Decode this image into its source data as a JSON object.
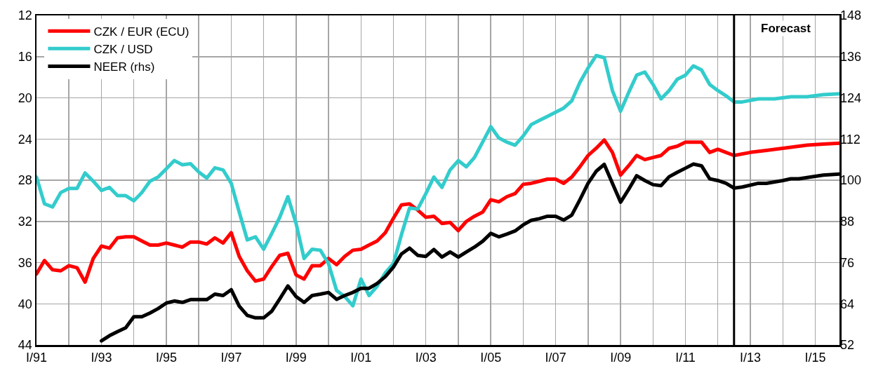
{
  "chart_data": {
    "type": "line",
    "xlim": [
      "1991-01",
      "2015-10"
    ],
    "xticks": [
      {
        "value": "1991-01",
        "label": "I/91"
      },
      {
        "value": "1992-01",
        "label": null
      },
      {
        "value": "1993-01",
        "label": "I/93"
      },
      {
        "value": "1994-01",
        "label": null
      },
      {
        "value": "1995-01",
        "label": "I/95"
      },
      {
        "value": "1996-01",
        "label": null
      },
      {
        "value": "1997-01",
        "label": "I/97"
      },
      {
        "value": "1998-01",
        "label": null
      },
      {
        "value": "1999-01",
        "label": "I/99"
      },
      {
        "value": "2000-01",
        "label": null
      },
      {
        "value": "2001-01",
        "label": "I/01"
      },
      {
        "value": "2002-01",
        "label": null
      },
      {
        "value": "2003-01",
        "label": "I/03"
      },
      {
        "value": "2004-01",
        "label": null
      },
      {
        "value": "2005-01",
        "label": "I/05"
      },
      {
        "value": "2006-01",
        "label": null
      },
      {
        "value": "2007-01",
        "label": "I/07"
      },
      {
        "value": "2008-01",
        "label": null
      },
      {
        "value": "2009-01",
        "label": "I/09"
      },
      {
        "value": "2010-01",
        "label": null
      },
      {
        "value": "2011-01",
        "label": "I/11"
      },
      {
        "value": "2012-01",
        "label": null
      },
      {
        "value": "2013-01",
        "label": "I/13"
      },
      {
        "value": "2014-01",
        "label": null
      },
      {
        "value": "2015-01",
        "label": "I/15"
      }
    ],
    "ylim": [
      44,
      12
    ],
    "yticks": [
      12,
      16,
      20,
      24,
      28,
      32,
      36,
      40,
      44
    ],
    "y2lim": [
      52,
      148
    ],
    "y2ticks": [
      52,
      64,
      76,
      88,
      100,
      112,
      124,
      136,
      148
    ],
    "grid": true,
    "legend": "top left",
    "marker": "none",
    "line_style": "solid",
    "ref_lines": [
      {
        "axis": "x",
        "value": "2012-07",
        "label": "Forecast",
        "color": "#000000",
        "line_style": "solid"
      }
    ],
    "series": [
      {
        "name": "CZK / EUR (ECU)",
        "color": "#ff0000",
        "x": [
          "1991-01",
          "1991-04",
          "1991-07",
          "1991-10",
          "1992-01",
          "1992-04",
          "1992-07",
          "1992-10",
          "1993-01",
          "1993-04",
          "1993-07",
          "1993-10",
          "1994-01",
          "1994-04",
          "1994-07",
          "1994-10",
          "1995-01",
          "1995-04",
          "1995-07",
          "1995-10",
          "1996-01",
          "1996-04",
          "1996-07",
          "1996-10",
          "1997-01",
          "1997-04",
          "1997-07",
          "1997-10",
          "1998-01",
          "1998-04",
          "1998-07",
          "1998-10",
          "1999-01",
          "1999-04",
          "1999-07",
          "1999-10",
          "2000-01",
          "2000-04",
          "2000-07",
          "2000-10",
          "2001-01",
          "2001-04",
          "2001-07",
          "2001-10",
          "2002-01",
          "2002-04",
          "2002-07",
          "2002-10",
          "2003-01",
          "2003-04",
          "2003-07",
          "2003-10",
          "2004-01",
          "2004-04",
          "2004-07",
          "2004-10",
          "2005-01",
          "2005-04",
          "2005-07",
          "2005-10",
          "2006-01",
          "2006-04",
          "2006-07",
          "2006-10",
          "2007-01",
          "2007-04",
          "2007-07",
          "2007-10",
          "2008-01",
          "2008-04",
          "2008-07",
          "2008-10",
          "2009-01",
          "2009-04",
          "2009-07",
          "2009-10",
          "2010-01",
          "2010-04",
          "2010-07",
          "2010-10",
          "2011-01",
          "2011-04",
          "2011-07",
          "2011-10",
          "2012-01",
          "2012-04",
          "2012-07",
          "2013-01",
          "2013-07",
          "2014-01",
          "2014-10",
          "2015-04",
          "2015-10"
        ],
        "values": [
          37.1,
          35.8,
          36.7,
          36.8,
          36.3,
          36.5,
          37.9,
          35.6,
          34.4,
          34.6,
          33.6,
          33.5,
          33.5,
          33.9,
          34.3,
          34.3,
          34.1,
          34.3,
          34.5,
          34.0,
          34.0,
          34.2,
          33.6,
          34.1,
          33.1,
          35.4,
          36.8,
          37.8,
          37.6,
          36.4,
          35.3,
          35.1,
          37.2,
          37.6,
          36.3,
          36.3,
          35.6,
          36.2,
          35.4,
          34.8,
          34.7,
          34.3,
          33.9,
          33.1,
          31.7,
          30.4,
          30.3,
          30.9,
          31.6,
          31.5,
          32.2,
          32.1,
          32.9,
          32.0,
          31.5,
          31.1,
          29.9,
          30.1,
          29.6,
          29.3,
          28.4,
          28.3,
          28.1,
          27.9,
          27.9,
          28.3,
          27.7,
          26.7,
          25.6,
          24.9,
          24.1,
          25.3,
          27.5,
          26.6,
          25.6,
          26.0,
          25.8,
          25.6,
          24.9,
          24.7,
          24.3,
          24.3,
          24.3,
          25.3,
          25.0,
          25.3,
          25.6,
          25.3,
          25.1,
          24.9,
          24.6,
          24.5,
          24.4
        ]
      },
      {
        "name": "CZK / USD",
        "color": "#33cccc",
        "x": [
          "1991-01",
          "1991-04",
          "1991-07",
          "1991-10",
          "1992-01",
          "1992-04",
          "1992-07",
          "1992-10",
          "1993-01",
          "1993-04",
          "1993-07",
          "1993-10",
          "1994-01",
          "1994-04",
          "1994-07",
          "1994-10",
          "1995-01",
          "1995-04",
          "1995-07",
          "1995-10",
          "1996-01",
          "1996-04",
          "1996-07",
          "1996-10",
          "1997-01",
          "1997-04",
          "1997-07",
          "1997-10",
          "1998-01",
          "1998-04",
          "1998-07",
          "1998-10",
          "1999-01",
          "1999-04",
          "1999-07",
          "1999-10",
          "2000-01",
          "2000-04",
          "2000-07",
          "2000-10",
          "2001-01",
          "2001-04",
          "2001-07",
          "2001-10",
          "2002-01",
          "2002-04",
          "2002-07",
          "2002-10",
          "2003-01",
          "2003-04",
          "2003-07",
          "2003-10",
          "2004-01",
          "2004-04",
          "2004-07",
          "2004-10",
          "2005-01",
          "2005-04",
          "2005-07",
          "2005-10",
          "2006-01",
          "2006-04",
          "2006-07",
          "2006-10",
          "2007-01",
          "2007-04",
          "2007-07",
          "2007-10",
          "2008-01",
          "2008-04",
          "2008-07",
          "2008-10",
          "2009-01",
          "2009-04",
          "2009-07",
          "2009-10",
          "2010-01",
          "2010-04",
          "2010-07",
          "2010-10",
          "2011-01",
          "2011-04",
          "2011-07",
          "2011-10",
          "2012-01",
          "2012-04",
          "2012-07",
          "2012-10",
          "2013-04",
          "2013-10",
          "2014-04",
          "2014-10",
          "2015-04",
          "2015-10"
        ],
        "values": [
          27.7,
          30.3,
          30.6,
          29.2,
          28.8,
          28.8,
          27.3,
          28.1,
          29.0,
          28.7,
          29.5,
          29.5,
          30.0,
          29.2,
          28.1,
          27.7,
          26.9,
          26.1,
          26.5,
          26.4,
          27.2,
          27.8,
          26.8,
          27.0,
          28.3,
          31.1,
          33.8,
          33.5,
          34.7,
          33.2,
          31.6,
          29.6,
          32.2,
          35.6,
          34.7,
          34.8,
          36.1,
          38.7,
          39.3,
          40.2,
          37.6,
          39.2,
          38.3,
          37.0,
          36.1,
          33.3,
          30.7,
          30.8,
          29.3,
          27.7,
          28.7,
          27.0,
          26.1,
          26.7,
          25.8,
          24.3,
          22.8,
          23.9,
          24.3,
          24.6,
          23.7,
          22.6,
          22.2,
          21.8,
          21.4,
          21.0,
          20.3,
          18.5,
          17.1,
          15.9,
          16.1,
          19.3,
          21.3,
          19.5,
          17.8,
          17.5,
          18.7,
          20.1,
          19.3,
          18.2,
          17.8,
          16.9,
          17.3,
          18.7,
          19.3,
          19.8,
          20.4,
          20.4,
          20.1,
          20.1,
          19.9,
          19.9,
          19.7,
          19.6
        ]
      },
      {
        "name": "NEER (rhs)",
        "color": "#000000",
        "axis": "y2",
        "x": [
          "1993-01",
          "1993-04",
          "1993-07",
          "1993-10",
          "1994-01",
          "1994-04",
          "1994-07",
          "1994-10",
          "1995-01",
          "1995-04",
          "1995-07",
          "1995-10",
          "1996-01",
          "1996-04",
          "1996-07",
          "1996-10",
          "1997-01",
          "1997-04",
          "1997-07",
          "1997-10",
          "1998-01",
          "1998-04",
          "1998-07",
          "1998-10",
          "1999-01",
          "1999-04",
          "1999-07",
          "1999-10",
          "2000-01",
          "2000-04",
          "2000-07",
          "2000-10",
          "2001-01",
          "2001-04",
          "2001-07",
          "2001-10",
          "2002-01",
          "2002-04",
          "2002-07",
          "2002-10",
          "2003-01",
          "2003-04",
          "2003-07",
          "2003-10",
          "2004-01",
          "2004-04",
          "2004-07",
          "2004-10",
          "2005-01",
          "2005-04",
          "2005-07",
          "2005-10",
          "2006-01",
          "2006-04",
          "2006-07",
          "2006-10",
          "2007-01",
          "2007-04",
          "2007-07",
          "2007-10",
          "2008-01",
          "2008-04",
          "2008-07",
          "2008-10",
          "2009-01",
          "2009-04",
          "2009-07",
          "2009-10",
          "2010-01",
          "2010-04",
          "2010-07",
          "2010-10",
          "2011-01",
          "2011-04",
          "2011-07",
          "2011-10",
          "2012-01",
          "2012-04",
          "2012-07",
          "2012-10",
          "2013-04",
          "2013-07",
          "2014-01",
          "2014-04",
          "2014-07",
          "2015-04",
          "2015-10"
        ],
        "values": [
          53.2,
          54.7,
          55.9,
          57.0,
          60.2,
          60.2,
          61.3,
          62.6,
          64.2,
          64.8,
          64.4,
          65.2,
          65.2,
          65.2,
          66.8,
          66.4,
          68.1,
          63.3,
          60.6,
          59.9,
          59.9,
          61.8,
          65.4,
          69.2,
          66.1,
          64.4,
          66.4,
          66.8,
          67.3,
          65.3,
          66.4,
          67.3,
          68.5,
          68.5,
          69.9,
          71.9,
          74.7,
          78.5,
          80.2,
          78.1,
          77.8,
          79.8,
          77.6,
          79.1,
          77.6,
          79.1,
          80.5,
          82.2,
          84.5,
          83.5,
          84.3,
          85.2,
          87.0,
          88.3,
          88.8,
          89.5,
          89.5,
          88.4,
          89.8,
          94.3,
          99.1,
          102.6,
          104.6,
          99.1,
          93.6,
          97.3,
          101.3,
          99.9,
          98.7,
          98.4,
          101.0,
          102.3,
          103.5,
          104.7,
          104.2,
          100.4,
          99.9,
          99.1,
          97.7,
          98.0,
          99.1,
          99.1,
          99.9,
          100.4,
          100.4,
          101.5,
          101.8
        ]
      }
    ]
  }
}
